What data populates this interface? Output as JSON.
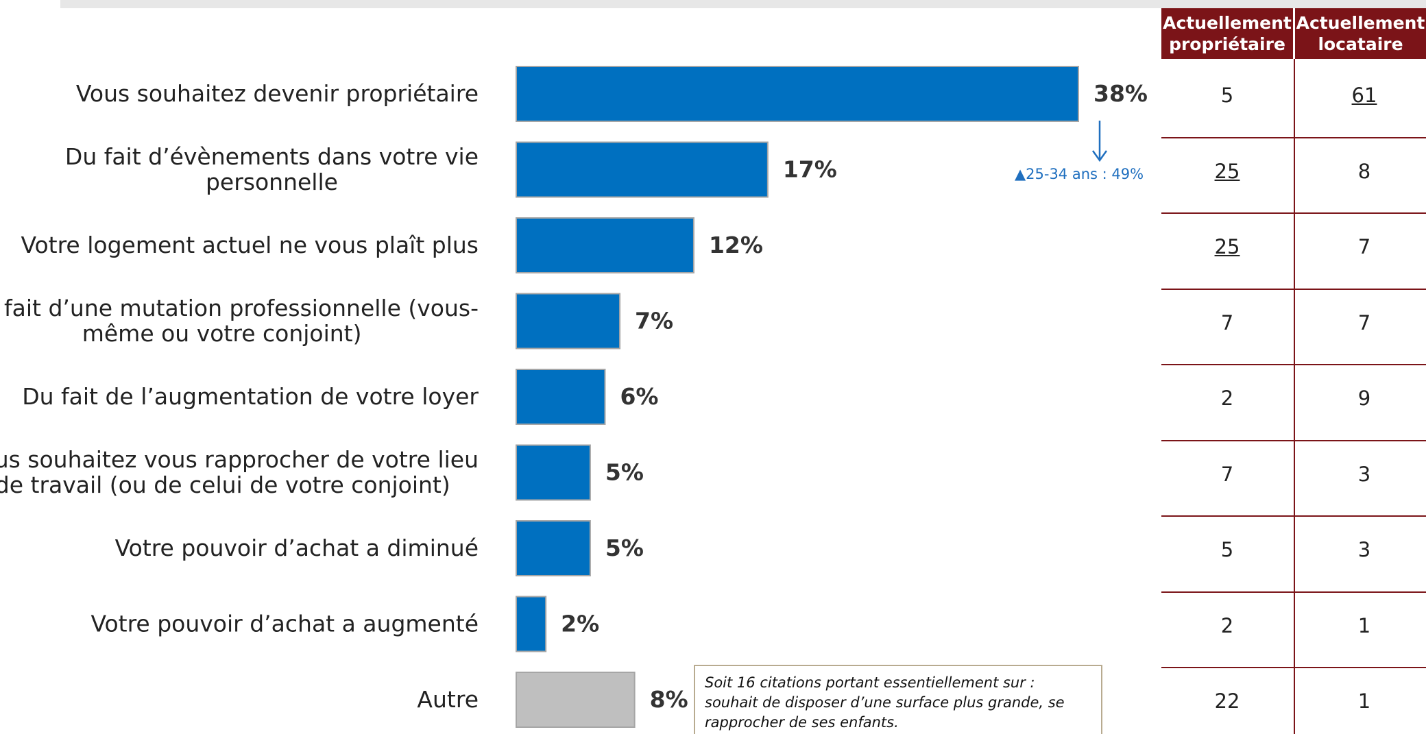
{
  "chart_data": {
    "type": "bar",
    "orientation": "horizontal",
    "categories": [
      "Vous souhaitez devenir propriétaire",
      "Du fait d’évènements dans votre vie personnelle",
      "Votre logement actuel ne vous plaît plus",
      "Du fait d’une mutation professionnelle (vous-même ou votre conjoint)",
      "Du fait de l’augmentation de votre loyer",
      "Vous souhaitez vous rapprocher de votre lieu de travail (ou de celui de votre conjoint)",
      "Votre pouvoir d’achat a diminué",
      "Votre pouvoir d’achat a augmenté",
      "Autre"
    ],
    "category_lines": [
      [
        "Vous souhaitez devenir propriétaire"
      ],
      [
        "Du fait d’évènements dans votre vie",
        "personnelle"
      ],
      [
        "Votre logement actuel ne vous plaît plus"
      ],
      [
        "Du fait d’une mutation professionnelle (vous-",
        "même ou votre conjoint)"
      ],
      [
        "Du fait de l’augmentation de votre loyer"
      ],
      [
        "Vous souhaitez vous rapprocher de votre lieu",
        "de travail (ou de celui de votre conjoint)"
      ],
      [
        "Votre pouvoir d’achat a diminué"
      ],
      [
        "Votre pouvoir d’achat a augmenté"
      ],
      [
        "Autre"
      ]
    ],
    "values": [
      38,
      17,
      12,
      7,
      6,
      5,
      5,
      2,
      8
    ],
    "value_labels": [
      "38%",
      "17%",
      "12%",
      "7%",
      "6%",
      "5%",
      "5%",
      "2%",
      "8%"
    ],
    "bar_colors": [
      "#0070c0",
      "#0070c0",
      "#0070c0",
      "#0070c0",
      "#0070c0",
      "#0070c0",
      "#0070c0",
      "#0070c0",
      "#bfbfbf"
    ],
    "bar_border_color": "#a6a6a6",
    "xlim": [
      0,
      38
    ],
    "grid": false,
    "annotation": {
      "category": "Vous souhaitez devenir propriétaire",
      "text": "▲25-34 ans : 49%",
      "color": "#1f6fbf"
    },
    "note": "Soit 16 citations portant essentiellement sur : souhait de disposer d’une surface plus grande, se rapprocher de ses enfants."
  },
  "table": {
    "header_color": "#7b1418",
    "columns": [
      {
        "label_lines": [
          "Actuellement",
          "propriétaire"
        ]
      },
      {
        "label_lines": [
          "Actuellement",
          "locataire"
        ]
      }
    ],
    "rows": [
      [
        {
          "value": "5",
          "underline": false
        },
        {
          "value": "61",
          "underline": true
        }
      ],
      [
        {
          "value": "25",
          "underline": true
        },
        {
          "value": "8",
          "underline": false
        }
      ],
      [
        {
          "value": "25",
          "underline": true
        },
        {
          "value": "7",
          "underline": false
        }
      ],
      [
        {
          "value": "7",
          "underline": false
        },
        {
          "value": "7",
          "underline": false
        }
      ],
      [
        {
          "value": "2",
          "underline": false
        },
        {
          "value": "9",
          "underline": false
        }
      ],
      [
        {
          "value": "7",
          "underline": false
        },
        {
          "value": "3",
          "underline": false
        }
      ],
      [
        {
          "value": "5",
          "underline": false
        },
        {
          "value": "3",
          "underline": false
        }
      ],
      [
        {
          "value": "2",
          "underline": false
        },
        {
          "value": "1",
          "underline": false
        }
      ],
      [
        {
          "value": "22",
          "underline": false
        },
        {
          "value": "1",
          "underline": false
        }
      ]
    ]
  }
}
